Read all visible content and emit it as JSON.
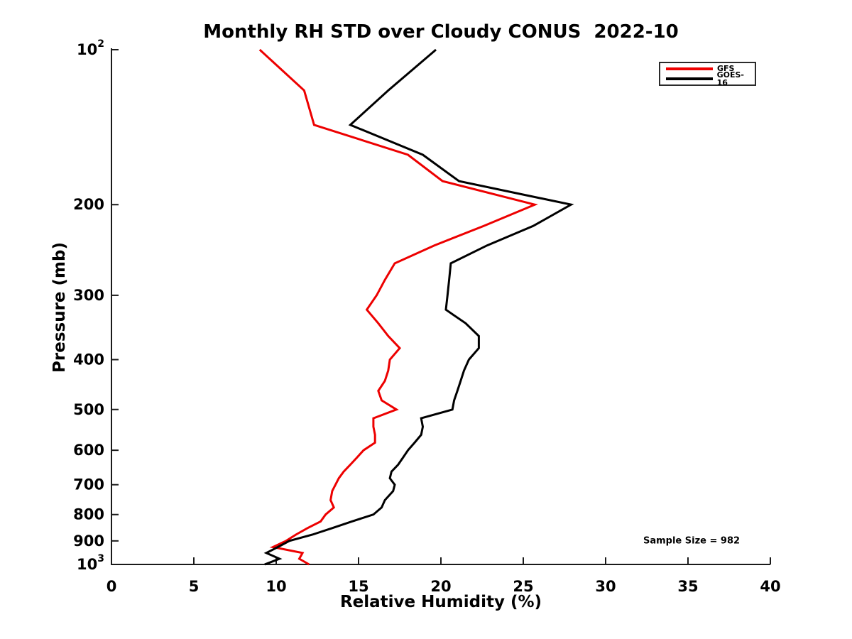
{
  "figure": {
    "background": "#ffffff",
    "axis_color": "#1a1a1a"
  },
  "chart_data": {
    "type": "line",
    "title": "Monthly RH STD over Cloudy CONUS  2022-10",
    "xlabel": "Relative Humidity (%)",
    "ylabel": "Pressure (mb)",
    "annotation": "Sample Size = 982",
    "xlim": [
      0,
      40
    ],
    "ylim": [
      100,
      1000
    ],
    "y_scale": "log",
    "y_inverted": true,
    "grid": false,
    "x_ticks": [
      {
        "value": 0,
        "label": "0"
      },
      {
        "value": 5,
        "label": "5"
      },
      {
        "value": 10,
        "label": "10"
      },
      {
        "value": 15,
        "label": "15"
      },
      {
        "value": 20,
        "label": "20"
      },
      {
        "value": 25,
        "label": "25"
      },
      {
        "value": 30,
        "label": "30"
      },
      {
        "value": 35,
        "label": "35"
      },
      {
        "value": 40,
        "label": "40"
      }
    ],
    "y_ticks": [
      {
        "value": 100,
        "label": "10^2"
      },
      {
        "value": 200,
        "label": "200"
      },
      {
        "value": 300,
        "label": "300"
      },
      {
        "value": 400,
        "label": "400"
      },
      {
        "value": 500,
        "label": "500"
      },
      {
        "value": 600,
        "label": "600"
      },
      {
        "value": 700,
        "label": "700"
      },
      {
        "value": 800,
        "label": "800"
      },
      {
        "value": 900,
        "label": "900"
      },
      {
        "value": 1000,
        "label": "10^3"
      }
    ],
    "legend": {
      "position": "top-right"
    },
    "pressure_levels_mb": [
      100,
      120,
      140,
      160,
      180,
      200,
      220,
      240,
      260,
      280,
      300,
      320,
      340,
      360,
      380,
      400,
      420,
      440,
      460,
      480,
      500,
      520,
      540,
      560,
      580,
      600,
      620,
      640,
      660,
      680,
      700,
      720,
      750,
      775,
      800,
      825,
      850,
      875,
      900,
      925,
      950,
      975,
      1000
    ],
    "series": [
      {
        "name": "GFS",
        "color": "#ed0000",
        "values": [
          9.0,
          11.7,
          12.3,
          18.0,
          20.1,
          25.7,
          22.6,
          19.6,
          17.2,
          16.6,
          16.1,
          15.5,
          16.2,
          16.8,
          17.5,
          16.9,
          16.8,
          16.6,
          16.2,
          16.4,
          17.3,
          15.9,
          15.9,
          16.0,
          16.0,
          15.3,
          14.9,
          14.5,
          14.1,
          13.8,
          13.6,
          13.4,
          13.3,
          13.5,
          13.0,
          12.7,
          11.9,
          11.2,
          10.6,
          9.8,
          11.6,
          11.4,
          12.0
        ]
      },
      {
        "name": "GOES-16",
        "color": "#000000",
        "values": [
          19.7,
          16.8,
          14.5,
          18.9,
          21.1,
          27.9,
          25.6,
          22.8,
          20.6,
          20.5,
          20.4,
          20.3,
          21.5,
          22.3,
          22.3,
          21.7,
          21.4,
          21.2,
          21.0,
          20.8,
          20.7,
          18.8,
          18.9,
          18.8,
          18.4,
          18.0,
          17.7,
          17.4,
          17.0,
          16.9,
          17.2,
          17.1,
          16.6,
          16.4,
          15.9,
          14.6,
          13.4,
          12.2,
          10.8,
          10.1,
          9.4,
          10.2,
          9.3
        ]
      }
    ]
  }
}
